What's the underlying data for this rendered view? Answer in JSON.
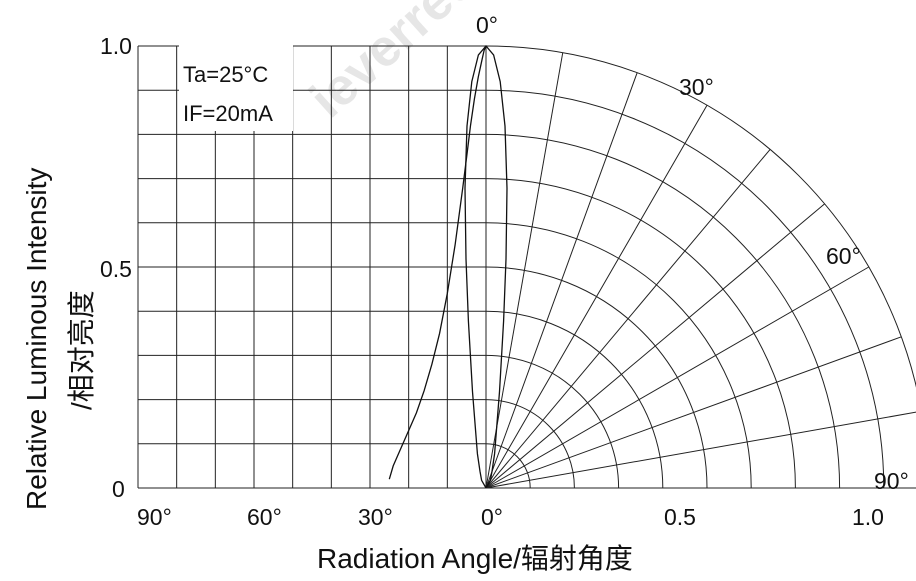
{
  "chart_data": {
    "type": "polar_radiation_pattern",
    "title": "",
    "watermark": "ieverred.com",
    "xlabel": "Radiation Angle/辐射角度",
    "ylabel_line1": "Relative Luminous Intensity",
    "ylabel_line2": "/相对亮度",
    "conditions": [
      "Ta=25°C",
      "IF=20mA"
    ],
    "left_y_ticks": [
      {
        "value": 0,
        "label": "0"
      },
      {
        "value": 0.5,
        "label": "0.5"
      },
      {
        "value": 1.0,
        "label": "1.0"
      }
    ],
    "left_x_ticks": [
      {
        "angle": 90,
        "label": "90°"
      },
      {
        "angle": 60,
        "label": "60°"
      },
      {
        "angle": 30,
        "label": "30°"
      },
      {
        "angle": 0,
        "label": "0°"
      }
    ],
    "radial_ticks": [
      {
        "value": 0.5,
        "label": "0.5"
      },
      {
        "value": 1.0,
        "label": "1.0"
      }
    ],
    "arc_angle_labels": [
      {
        "angle": 0,
        "label": "0°"
      },
      {
        "angle": 30,
        "label": "30°"
      },
      {
        "angle": 60,
        "label": "60°"
      },
      {
        "angle": 90,
        "label": "90°"
      }
    ],
    "grid": true,
    "radial_grid_step": 0.1,
    "angular_grid_step_deg": 10,
    "polar_curve": [
      {
        "angle": 0,
        "r": 1.0
      },
      {
        "angle": 1,
        "r": 0.98
      },
      {
        "angle": 2,
        "r": 0.92
      },
      {
        "angle": 3,
        "r": 0.82
      },
      {
        "angle": 4,
        "r": 0.68
      },
      {
        "angle": 5,
        "r": 0.52
      },
      {
        "angle": 6,
        "r": 0.38
      },
      {
        "angle": 8,
        "r": 0.22
      },
      {
        "angle": 10,
        "r": 0.14
      },
      {
        "angle": 14,
        "r": 0.08
      },
      {
        "angle": 20,
        "r": 0.04
      },
      {
        "angle": 30,
        "r": 0.02
      },
      {
        "angle": 45,
        "r": 0.0
      }
    ],
    "angular_curve": [
      {
        "angle": 0,
        "r": 1.0
      },
      {
        "angle": 0.5,
        "r": 0.99
      },
      {
        "angle": 1,
        "r": 0.97
      },
      {
        "angle": 2,
        "r": 0.93
      },
      {
        "angle": 3,
        "r": 0.88
      },
      {
        "angle": 4,
        "r": 0.82
      },
      {
        "angle": 5,
        "r": 0.75
      },
      {
        "angle": 6,
        "r": 0.68
      },
      {
        "angle": 8,
        "r": 0.55
      },
      {
        "angle": 10,
        "r": 0.44
      },
      {
        "angle": 12,
        "r": 0.35
      },
      {
        "angle": 14,
        "r": 0.28
      },
      {
        "angle": 16,
        "r": 0.22
      },
      {
        "angle": 18,
        "r": 0.17
      },
      {
        "angle": 20,
        "r": 0.13
      },
      {
        "angle": 22,
        "r": 0.09
      },
      {
        "angle": 24,
        "r": 0.05
      },
      {
        "angle": 25,
        "r": 0.02
      }
    ]
  }
}
